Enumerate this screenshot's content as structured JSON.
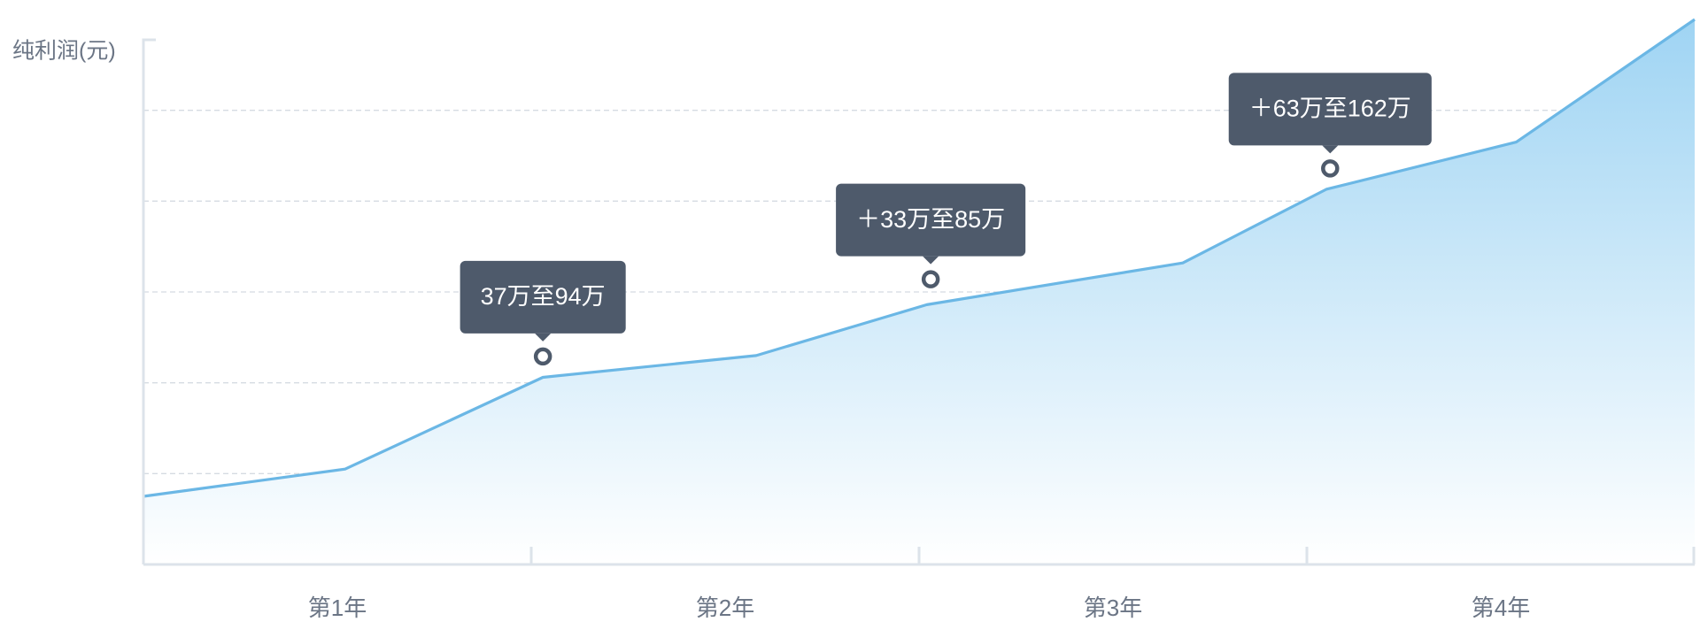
{
  "chart_data": {
    "type": "area",
    "y_label": "纯利润(元)",
    "categories": [
      "第1年",
      "第2年",
      "第3年",
      "第4年"
    ],
    "x": [
      0,
      0.52,
      1.03,
      1.58,
      2.02,
      2.68,
      3.05,
      3.54,
      4.0
    ],
    "values": [
      0.75,
      1.05,
      2.06,
      2.3,
      2.86,
      3.32,
      4.13,
      4.65,
      6.0
    ],
    "color": "#6bb7e5",
    "fill_top": "#9fd4f3",
    "xlim": [
      0,
      4
    ],
    "xticks": [
      1,
      2,
      3,
      4
    ],
    "ylim": [
      0,
      6
    ],
    "yticks": [
      1,
      2,
      3,
      4,
      5
    ],
    "grid": true,
    "annotations": [
      {
        "text": "37万至94万",
        "x": 1.03,
        "y": 2.29
      },
      {
        "text": "＋33万至85万",
        "x": 2.03,
        "y": 3.14
      },
      {
        "text": "＋63万至162万",
        "x": 3.06,
        "y": 4.36
      }
    ]
  }
}
